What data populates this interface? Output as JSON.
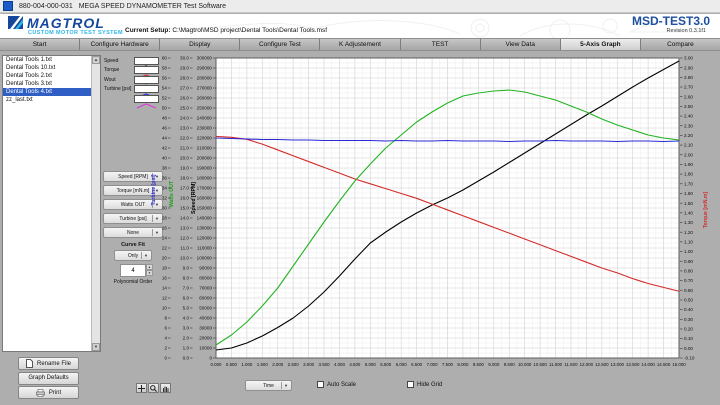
{
  "titlebar": {
    "app_id": "880-004-000-031",
    "title": "MEGA SPEED DYNAMOMETER Test Software"
  },
  "header": {
    "logo_title": "MAGTROL",
    "logo_subtitle": "CUSTOM MOTOR TEST SYSTEM",
    "current_setup_label": "Current Setup:",
    "current_setup_path": "C:\\Magtrol\\MSD project\\Dental Tools\\Dental Tools.msf",
    "product": "MSD-TEST3.0",
    "revision": "Revision  0.3.1f1"
  },
  "tabs": {
    "items": [
      "Start",
      "Configure Hardware",
      "Display",
      "Configure Test",
      "K Adjustement",
      "TEST",
      "View Data",
      "5-Axis Graph",
      "Compare"
    ],
    "active_index": 7
  },
  "file_list": {
    "items": [
      "Dental Tools 1.txt",
      "Dental Tools 10.txt",
      "Dental Tools 2.txt",
      "Dental Tools 3.txt",
      "Dental Tools 4.txt",
      "zz_last.txt"
    ],
    "selected_index": 4
  },
  "legend": {
    "items": [
      {
        "label": "Speed",
        "color": "#000000"
      },
      {
        "label": "Torque",
        "color": "#d42a2a"
      },
      {
        "label": "Wout",
        "color": "#22b422"
      },
      {
        "label": "Turbine [psi]",
        "color": "#2a2ad4"
      },
      {
        "label": "",
        "color": "#d83ad8"
      }
    ]
  },
  "axis_selectors": {
    "items": [
      "Speed [RPM]",
      "Torque [mN.m]",
      "Watts OUT",
      "Turbine [psi]",
      "None"
    ]
  },
  "curve_fit": {
    "label": "Curve Fit",
    "value": "Only",
    "order": "4",
    "order_label": "Polynomial Order"
  },
  "buttons": {
    "rename": "Rename File",
    "graph_defaults": "Graph Defaults",
    "print": "Print"
  },
  "bottom": {
    "x_selector_value": "Time",
    "auto_scale_label": "Auto Scale",
    "auto_scale_checked": false,
    "hide_grid_label": "Hide Grid",
    "hide_grid_checked": false
  },
  "chart_data": {
    "type": "line",
    "grid": true,
    "x_axis": {
      "label": "Time",
      "min": 0,
      "max": 15,
      "step": 0.5,
      "decimals": 3
    },
    "y_axes": [
      {
        "id": "turbine",
        "title": "Turbine [psi]",
        "color": "#2a2ad4",
        "min": 0,
        "max": 60,
        "step": 2,
        "decimals": 0,
        "side": "left"
      },
      {
        "id": "watts",
        "title": "Watts OUT",
        "color": "#1f9f1f",
        "min": 0,
        "max": 30,
        "step": 1,
        "decimals": 1,
        "side": "left"
      },
      {
        "id": "speed",
        "title": "Speed [RPM]",
        "color": "#000000",
        "min": 0,
        "max": 300000,
        "step": 10000,
        "decimals": 0,
        "side": "left"
      },
      {
        "id": "torque",
        "title": "Torque [mN.m]",
        "color": "#d42a2a",
        "min": -0.1,
        "max": 3.0,
        "step": 0.1,
        "decimals": 2,
        "side": "right"
      }
    ],
    "x": [
      0,
      0.5,
      1,
      1.5,
      2,
      2.5,
      3,
      3.5,
      4,
      4.5,
      5,
      5.5,
      6,
      6.5,
      7,
      7.5,
      8,
      8.5,
      9,
      9.5,
      10,
      10.5,
      11,
      11.5,
      12,
      12.5,
      13,
      13.5,
      14,
      14.5,
      15
    ],
    "series": [
      {
        "name": "Speed",
        "axis": "speed",
        "color": "#000000",
        "values": [
          8000,
          10000,
          15000,
          22000,
          30500,
          40000,
          52000,
          66000,
          82000,
          99000,
          115000,
          126000,
          136000,
          145000,
          153000,
          160000,
          168000,
          177000,
          186000,
          195500,
          205000,
          214500,
          224000,
          233500,
          243000,
          252000,
          261500,
          271000,
          280000,
          288500,
          297000
        ]
      },
      {
        "name": "Torque",
        "axis": "torque",
        "color": "#d42a2a",
        "values": [
          2.19,
          2.18,
          2.16,
          2.11,
          2.05,
          1.99,
          1.93,
          1.87,
          1.81,
          1.75,
          1.7,
          1.65,
          1.6,
          1.55,
          1.49,
          1.43,
          1.37,
          1.31,
          1.25,
          1.19,
          1.13,
          1.07,
          1.01,
          0.95,
          0.89,
          0.83,
          0.78,
          0.72,
          0.67,
          0.63,
          0.59
        ]
      },
      {
        "name": "Wout",
        "axis": "watts",
        "color": "#22b422",
        "values": [
          1.3,
          2.3,
          3.6,
          5.2,
          7.0,
          9.2,
          11.4,
          13.6,
          15.7,
          17.7,
          19.4,
          21.0,
          22.3,
          23.6,
          24.6,
          25.5,
          26.2,
          26.5,
          26.7,
          26.8,
          26.6,
          26.2,
          25.8,
          25.2,
          24.6,
          23.9,
          23.3,
          22.8,
          22.3,
          22.0,
          21.8
        ]
      },
      {
        "name": "Turbine [psi]",
        "axis": "turbine",
        "color": "#2a2ad4",
        "values": [
          44.0,
          43.9,
          43.8,
          43.7,
          43.7,
          43.6,
          43.6,
          43.5,
          43.5,
          43.5,
          43.5,
          43.4,
          43.5,
          43.4,
          43.4,
          43.5,
          43.4,
          43.4,
          43.4,
          43.3,
          43.4,
          43.4,
          43.5,
          43.4,
          43.4,
          43.4,
          43.3,
          43.4,
          43.4,
          43.3,
          43.4
        ]
      }
    ]
  }
}
